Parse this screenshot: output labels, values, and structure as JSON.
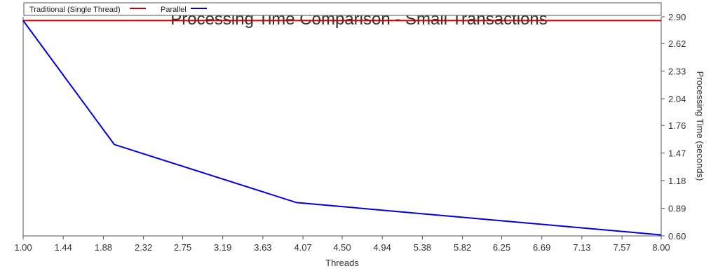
{
  "chart_data": {
    "type": "line",
    "title": "Processing Time Comparison - Small Transactions",
    "xlabel": "Threads",
    "ylabel": "Processing Time (seconds)",
    "xlim": [
      1.0,
      8.0
    ],
    "ylim": [
      0.6,
      2.9
    ],
    "x_ticks": [
      "1.00",
      "1.44",
      "1.88",
      "2.32",
      "2.75",
      "3.19",
      "3.63",
      "4.07",
      "4.50",
      "4.94",
      "5.38",
      "5.82",
      "6.25",
      "6.69",
      "7.13",
      "7.57",
      "8.00"
    ],
    "y_ticks": [
      "0.60",
      "0.89",
      "1.18",
      "1.47",
      "1.76",
      "2.04",
      "2.33",
      "2.62",
      "2.90"
    ],
    "y_axis_position": "right",
    "grid": false,
    "legend_position": "top",
    "series": [
      {
        "name": "Traditional (Single Thread)",
        "color": "#cc0000",
        "x": [
          1,
          8
        ],
        "y": [
          2.86,
          2.86
        ]
      },
      {
        "name": "Parallel",
        "color": "#0000dd",
        "x": [
          1,
          2,
          4,
          8
        ],
        "y": [
          2.86,
          1.56,
          0.95,
          0.61
        ]
      }
    ]
  }
}
